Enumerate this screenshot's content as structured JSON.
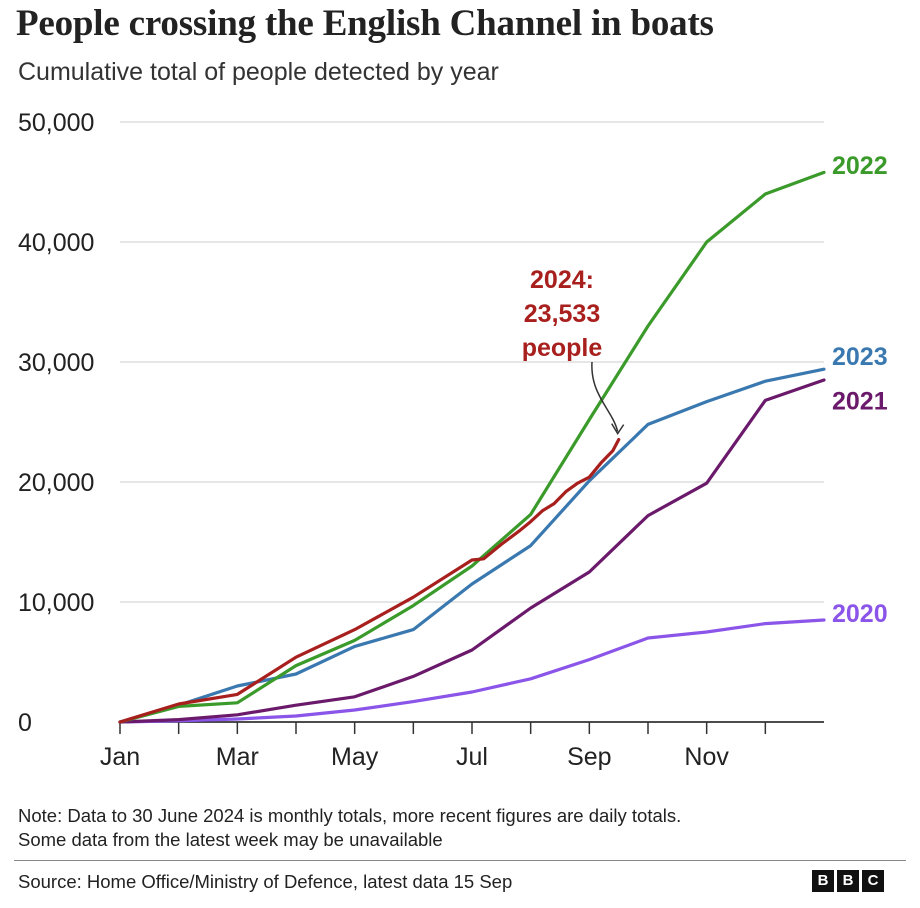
{
  "title": "People crossing the English Channel in boats",
  "subtitle": "Cumulative total of people detected by year",
  "note_line1": "Note: Data to 30 June 2024 is monthly totals, more recent figures are daily totals.",
  "note_line2": "Some data from the latest week may be unavailable",
  "source": "Source: Home Office/Ministry of Defence, latest data 15 Sep",
  "logo_letters": [
    "B",
    "B",
    "C"
  ],
  "chart_data": {
    "type": "line",
    "x_ticks": [
      "Jan",
      "Mar",
      "May",
      "Jul",
      "Sep",
      "Nov"
    ],
    "ylim": [
      0,
      50000
    ],
    "y_ticks": [
      0,
      10000,
      20000,
      30000,
      40000,
      50000
    ],
    "y_tick_labels": [
      "0",
      "10,000",
      "20,000",
      "30,000",
      "40,000",
      "50,000"
    ],
    "grid": true,
    "series": [
      {
        "name": "2020",
        "color": "#8a55e8",
        "x": [
          1,
          2,
          3,
          4,
          5,
          6,
          7,
          8,
          9,
          10,
          11,
          12,
          13
        ],
        "values": [
          0,
          100,
          250,
          500,
          1000,
          1700,
          2500,
          3600,
          5200,
          7000,
          7500,
          8200,
          8500
        ]
      },
      {
        "name": "2021",
        "color": "#6b1a6b",
        "x": [
          1,
          2,
          3,
          4,
          5,
          6,
          7,
          8,
          9,
          10,
          11,
          12,
          13
        ],
        "values": [
          0,
          200,
          600,
          1400,
          2100,
          3800,
          6000,
          9500,
          12500,
          17200,
          19900,
          26800,
          28500
        ]
      },
      {
        "name": "2022",
        "color": "#3a9a2a",
        "x": [
          1,
          2,
          3,
          4,
          5,
          6,
          7,
          8,
          9,
          10,
          11,
          12,
          13
        ],
        "values": [
          0,
          1300,
          1600,
          4700,
          6800,
          9700,
          13000,
          17300,
          25200,
          33000,
          40000,
          44000,
          45800
        ]
      },
      {
        "name": "2023",
        "color": "#3a78b0",
        "x": [
          1,
          2,
          3,
          4,
          5,
          6,
          7,
          8,
          9,
          10,
          11,
          12,
          13
        ],
        "values": [
          0,
          1400,
          3000,
          4000,
          6300,
          7700,
          11500,
          14700,
          20100,
          24800,
          26700,
          28400,
          29400
        ]
      },
      {
        "name": "2024",
        "color": "#a8201e",
        "x": [
          1,
          2,
          3,
          4,
          5,
          6,
          7,
          7.2,
          7.5,
          7.8,
          8.0,
          8.2,
          8.4,
          8.6,
          8.8,
          9.0,
          9.2,
          9.4,
          9.5
        ],
        "values": [
          0,
          1500,
          2300,
          5400,
          7700,
          10400,
          13500,
          13600,
          14800,
          15900,
          16700,
          17600,
          18200,
          19200,
          19900,
          20400,
          21600,
          22600,
          23533
        ]
      }
    ],
    "annotation": {
      "lines": [
        "2024:",
        "23,533",
        "people"
      ]
    }
  }
}
